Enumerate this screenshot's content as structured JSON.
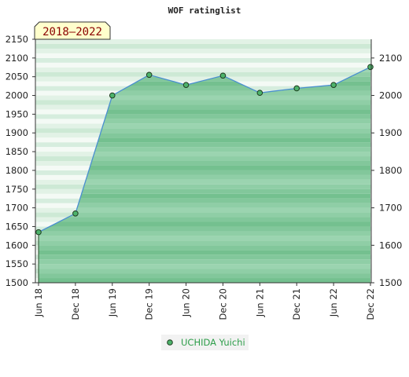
{
  "chart_data": {
    "type": "area",
    "title": "WOF ratinglist",
    "badge": "2018–2022",
    "categories": [
      "Jun 18",
      "Dec 18",
      "Jun 19",
      "Dec 19",
      "Jun 20",
      "Dec 20",
      "Jun 21",
      "Dec 21",
      "Jun 22",
      "Dec 22"
    ],
    "series": [
      {
        "name": "UCHIDA Yuichi",
        "values": [
          1635,
          1685,
          2000,
          2055,
          2028,
          2053,
          2007,
          2019,
          2028,
          2076
        ]
      }
    ],
    "ylim": [
      1500,
      2150
    ],
    "yticks_left": [
      1500,
      1550,
      1600,
      1650,
      1700,
      1750,
      1800,
      1850,
      1900,
      1950,
      2000,
      2050,
      2100,
      2150
    ],
    "yticks_right": [
      1500,
      1600,
      1700,
      1800,
      1900,
      2000,
      2100
    ],
    "grid": true,
    "legend": "bottom-center",
    "colors": {
      "line": "#4a8fd0",
      "marker": "#4db36b",
      "fill": "#79c493",
      "legend_text": "#2e9e4a",
      "badge_bg": "#ffffcc",
      "badge_text": "#8b0000"
    }
  }
}
